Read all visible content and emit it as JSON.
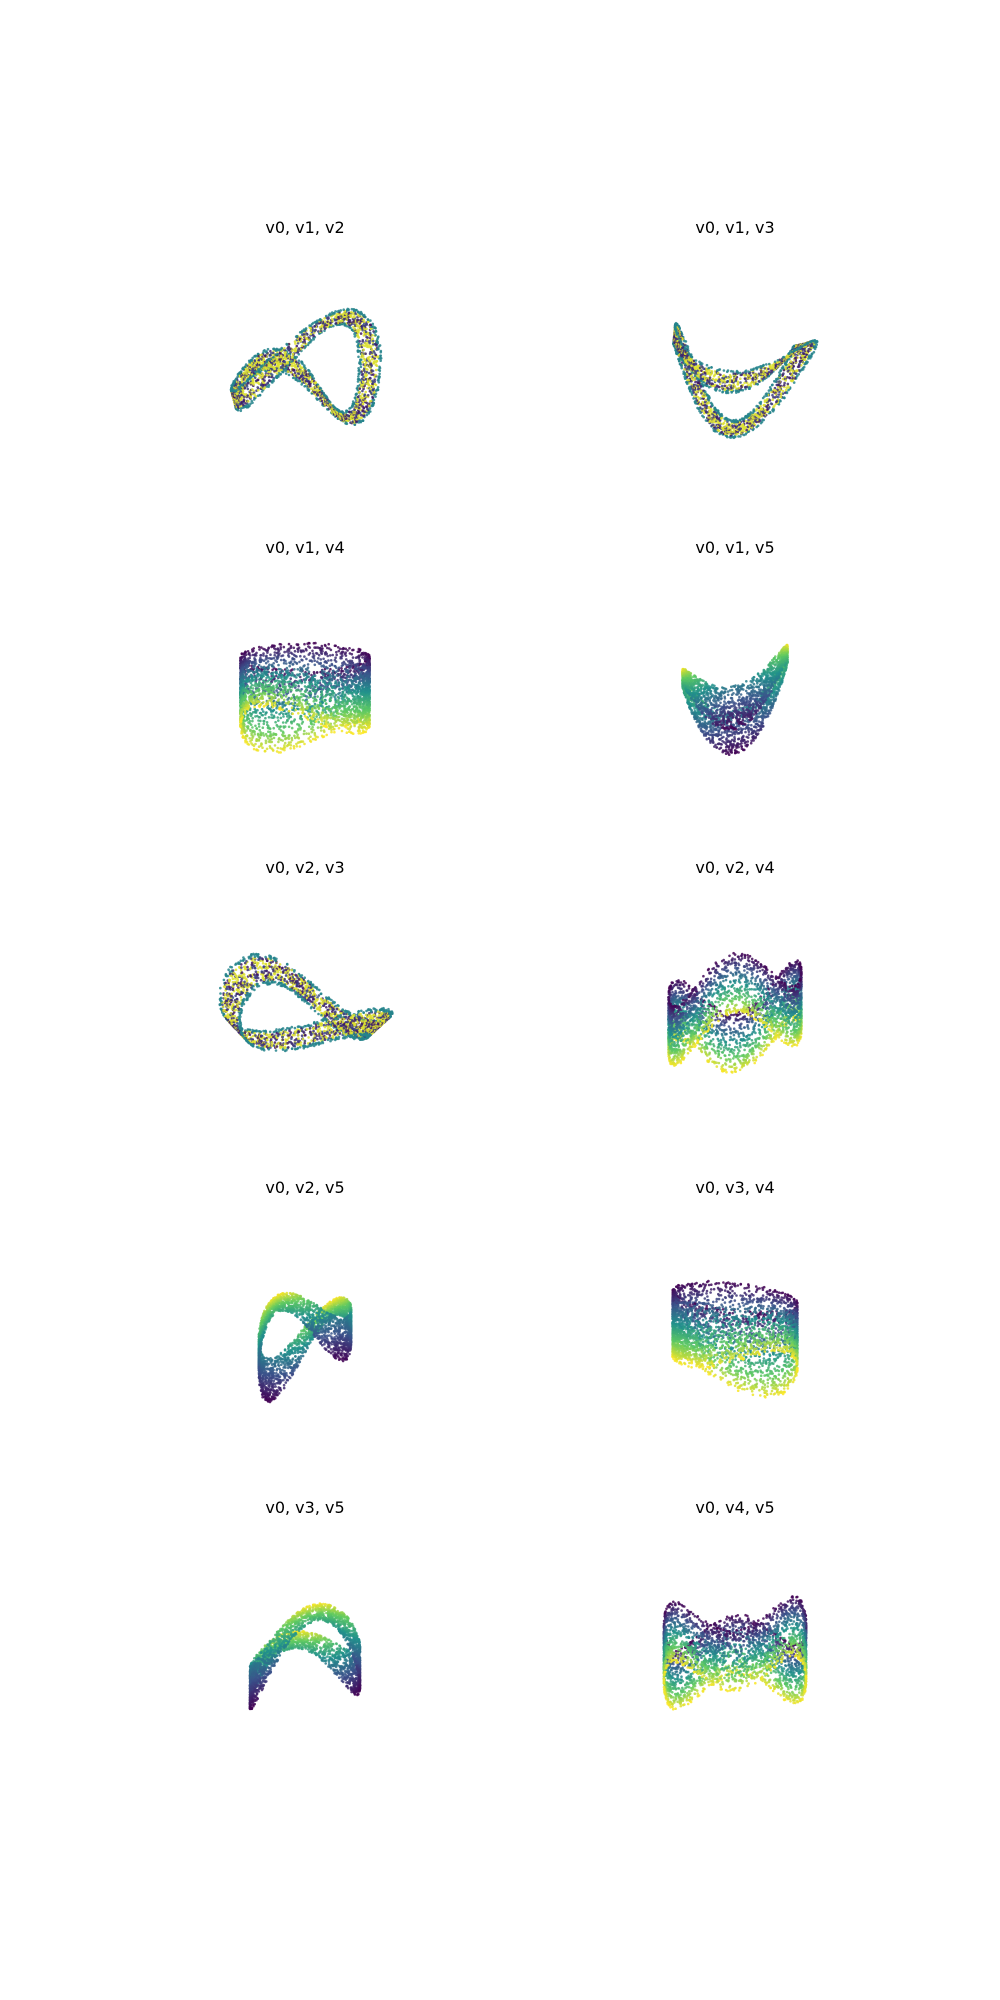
{
  "chart_data": {
    "type": "scatter",
    "plot_kind": "3d-scatter-projection-grid",
    "colormap": "viridis",
    "colormap_stops": [
      "#440154",
      "#3b528b",
      "#21918c",
      "#5ec962",
      "#fde725"
    ],
    "grid": "off",
    "axes_visible": false,
    "panels": [
      {
        "title": "v0, v1, v2",
        "shape": "twisted-ribbon-loop"
      },
      {
        "title": "v0, v1, v3",
        "shape": "twisted-ribbon-loop"
      },
      {
        "title": "v0, v1, v4",
        "shape": "saddle-cylinder"
      },
      {
        "title": "v0, v1, v5",
        "shape": "folded-saddle"
      },
      {
        "title": "v0, v2, v3",
        "shape": "figure-eight-ribbon"
      },
      {
        "title": "v0, v2, v4",
        "shape": "wavy-cylinder"
      },
      {
        "title": "v0, v2, v5",
        "shape": "folded-saddle"
      },
      {
        "title": "v0, v3, v4",
        "shape": "saddle-cylinder"
      },
      {
        "title": "v0, v3, v5",
        "shape": "folded-saddle"
      },
      {
        "title": "v0, v4, v5",
        "shape": "wavy-cylinder"
      }
    ]
  }
}
